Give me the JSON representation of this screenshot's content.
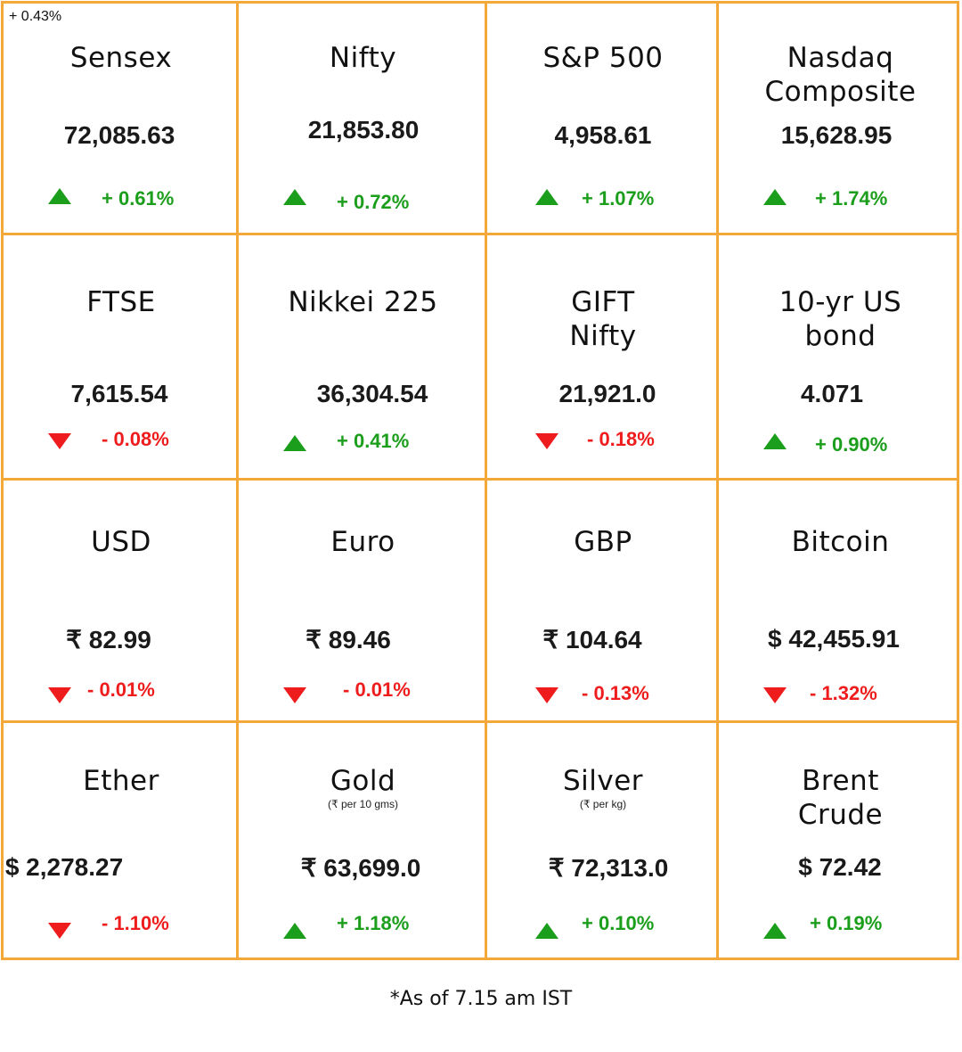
{
  "corner_note": "+ 0.43%",
  "cells": [
    {
      "title": "Sensex",
      "subnote": "",
      "value": "72,085.63",
      "direction": "up",
      "change": "+ 0.61%"
    },
    {
      "title": "Nifty",
      "subnote": "",
      "value": "21,853.80",
      "direction": "up",
      "change": "+ 0.72%"
    },
    {
      "title": "S&P 500",
      "subnote": "",
      "value": "4,958.61",
      "direction": "up",
      "change": "+ 1.07%"
    },
    {
      "title": "Nasdaq\nComposite",
      "subnote": "",
      "value": "15,628.95",
      "direction": "up",
      "change": "+ 1.74%"
    },
    {
      "title": "FTSE",
      "subnote": "",
      "value": "7,615.54",
      "direction": "down",
      "change": "- 0.08%"
    },
    {
      "title": "Nikkei 225",
      "subnote": "",
      "value": "36,304.54",
      "direction": "up",
      "change": "+ 0.41%"
    },
    {
      "title": "GIFT\nNifty",
      "subnote": "",
      "value": "21,921.0",
      "direction": "down",
      "change": "- 0.18%"
    },
    {
      "title": "10-yr US\nbond",
      "subnote": "",
      "value": "4.071",
      "direction": "up",
      "change": "+ 0.90%"
    },
    {
      "title": "USD",
      "subnote": "",
      "value": "₹ 82.99",
      "direction": "down",
      "change": "- 0.01%"
    },
    {
      "title": "Euro",
      "subnote": "",
      "value": "₹ 89.46",
      "direction": "down",
      "change": "- 0.01%"
    },
    {
      "title": "GBP",
      "subnote": "",
      "value": "₹ 104.64",
      "direction": "down",
      "change": "- 0.13%"
    },
    {
      "title": "Bitcoin",
      "subnote": "",
      "value": "$ 42,455.91",
      "direction": "down",
      "change": "- 1.32%"
    },
    {
      "title": "Ether",
      "subnote": "",
      "value": "$ 2,278.27",
      "direction": "down",
      "change": "- 1.10%"
    },
    {
      "title": "Gold",
      "subnote": "(₹ per 10 gms)",
      "value": "₹ 63,699.0",
      "direction": "up",
      "change": "+ 1.18%"
    },
    {
      "title": "Silver",
      "subnote": "(₹ per kg)",
      "value": "₹ 72,313.0",
      "direction": "up",
      "change": "+ 0.10%"
    },
    {
      "title": "Brent\nCrude",
      "subnote": "",
      "value": "$ 72.42",
      "direction": "up",
      "change": "+ 0.19%"
    }
  ],
  "footnote": "*As of 7.15 am IST",
  "colors": {
    "grid_border": "#f5a83a",
    "up": "#1b9e1b",
    "down": "#ee1c1c"
  }
}
